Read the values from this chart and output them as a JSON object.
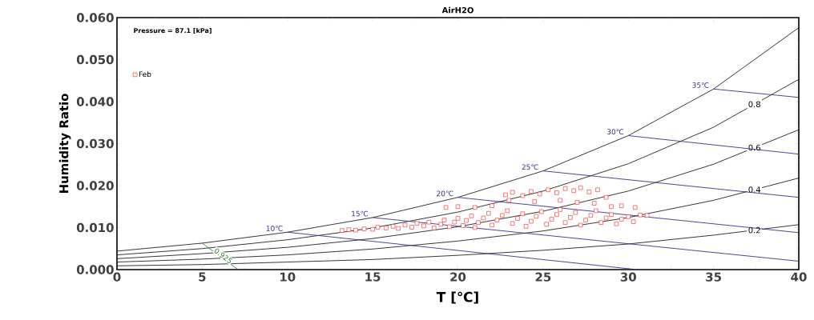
{
  "chart_data": {
    "type": "scatter",
    "title": "AirH2O",
    "xlabel": "T [℃]",
    "ylabel": "Humidity Ratio",
    "annotations": [
      "Pressure = 87.1 [kPa]"
    ],
    "xlim": [
      0,
      40
    ],
    "ylim": [
      0,
      0.06
    ],
    "xticks": [
      0,
      5,
      10,
      15,
      20,
      25,
      30,
      35,
      40
    ],
    "yticks": [
      {
        "value": 0,
        "label": "0.000"
      },
      {
        "value": 0.01,
        "label": "0.010"
      },
      {
        "value": 0.02,
        "label": "0.020"
      },
      {
        "value": 0.03,
        "label": "0.030"
      },
      {
        "value": 0.04,
        "label": "0.040"
      },
      {
        "value": 0.05,
        "label": "0.050"
      },
      {
        "value": 0.06,
        "label": "0.060"
      }
    ],
    "grid": false,
    "legend": "top left",
    "series": [
      {
        "name": "Feb",
        "marker": "square",
        "color": "#ee2222",
        "x": [
          13.2,
          13.6,
          14.0,
          14.5,
          15.0,
          15.3,
          15.8,
          16.2,
          16.5,
          16.9,
          17.3,
          17.6,
          18.0,
          18.3,
          18.6,
          19.0,
          19.2,
          19.5,
          19.8,
          20.0,
          20.3,
          20.5,
          20.8,
          21.0,
          21.2,
          21.5,
          21.8,
          22.0,
          22.3,
          22.6,
          22.9,
          23.2,
          23.5,
          23.8,
          24.0,
          24.3,
          24.6,
          24.9,
          25.2,
          25.5,
          25.8,
          26.0,
          26.3,
          26.6,
          26.9,
          27.2,
          27.5,
          27.8,
          28.1,
          28.4,
          28.7,
          29.0,
          29.3,
          29.6,
          30.0,
          30.3,
          30.7,
          31.1,
          19.3,
          20.0,
          21.0,
          22.0,
          22.8,
          23.2,
          23.8,
          24.3,
          24.8,
          25.3,
          25.8,
          26.3,
          26.8,
          27.2,
          27.7,
          28.2,
          28.7,
          27.0,
          28.0,
          29.0,
          29.6,
          30.4,
          23.0,
          24.5,
          26.0
        ],
        "values": [
          0.0093,
          0.0095,
          0.0094,
          0.0097,
          0.0096,
          0.0101,
          0.0099,
          0.0103,
          0.0098,
          0.0106,
          0.0101,
          0.011,
          0.0104,
          0.0113,
          0.0099,
          0.0108,
          0.0118,
          0.0102,
          0.0113,
          0.0122,
          0.0105,
          0.0117,
          0.0128,
          0.01,
          0.0112,
          0.0123,
          0.0134,
          0.0106,
          0.0118,
          0.0129,
          0.014,
          0.011,
          0.0122,
          0.0133,
          0.0103,
          0.0115,
          0.0127,
          0.0138,
          0.0108,
          0.012,
          0.0131,
          0.0143,
          0.0112,
          0.0124,
          0.0136,
          0.0106,
          0.0118,
          0.0129,
          0.014,
          0.0112,
          0.0123,
          0.0131,
          0.0109,
          0.012,
          0.0126,
          0.0114,
          0.013,
          0.0129,
          0.0148,
          0.015,
          0.0148,
          0.0152,
          0.0178,
          0.0184,
          0.0176,
          0.0186,
          0.018,
          0.019,
          0.0183,
          0.0193,
          0.0188,
          0.0195,
          0.0185,
          0.019,
          0.0172,
          0.016,
          0.0158,
          0.015,
          0.0152,
          0.0148,
          0.0165,
          0.0162,
          0.0165
        ]
      },
      {
        "type": "line",
        "color": "#222222",
        "x": [
          0,
          5,
          10,
          15,
          20,
          25,
          30,
          35,
          40
        ],
        "values": [
          0.0044,
          0.0063,
          0.0089,
          0.0124,
          0.0172,
          0.0235,
          0.0319,
          0.043,
          0.0576
        ]
      },
      {
        "name": "0.8",
        "type": "line",
        "color": "#222222",
        "x": [
          0,
          5,
          10,
          15,
          20,
          25,
          30,
          35,
          40
        ],
        "values": [
          0.0035,
          0.005,
          0.0071,
          0.0099,
          0.0137,
          0.0187,
          0.0252,
          0.0339,
          0.0453
        ]
      },
      {
        "name": "0.6",
        "type": "line",
        "color": "#222222",
        "x": [
          0,
          5,
          10,
          15,
          20,
          25,
          30,
          35,
          40
        ],
        "values": [
          0.0026,
          0.0038,
          0.0053,
          0.0074,
          0.0102,
          0.0139,
          0.0187,
          0.0251,
          0.0333
        ]
      },
      {
        "name": "0.4",
        "type": "line",
        "color": "#222222",
        "x": [
          0,
          5,
          10,
          15,
          20,
          25,
          30,
          35,
          40
        ],
        "values": [
          0.0018,
          0.0025,
          0.0035,
          0.0049,
          0.0068,
          0.0092,
          0.0124,
          0.0165,
          0.0218
        ]
      },
      {
        "name": "0.2",
        "type": "line",
        "color": "#222222",
        "x": [
          0,
          5,
          10,
          15,
          20,
          25,
          30,
          35,
          40
        ],
        "values": [
          0.0009,
          0.0012,
          0.0018,
          0.0024,
          0.0034,
          0.0046,
          0.0061,
          0.0082,
          0.0107
        ]
      },
      {
        "name": "10℃",
        "type": "line",
        "color": "#33338a",
        "x": [
          10,
          30.5
        ],
        "values": [
          0.0089,
          0.0
        ]
      },
      {
        "name": "15℃",
        "type": "line",
        "color": "#33338a",
        "x": [
          15,
          40
        ],
        "values": [
          0.0124,
          0.002
        ]
      },
      {
        "name": "20℃",
        "type": "line",
        "color": "#33338a",
        "x": [
          20,
          40
        ],
        "values": [
          0.0172,
          0.0088
        ]
      },
      {
        "name": "25℃",
        "type": "line",
        "color": "#33338a",
        "x": [
          25,
          40
        ],
        "values": [
          0.0235,
          0.0172
        ]
      },
      {
        "name": "30℃",
        "type": "line",
        "color": "#33338a",
        "x": [
          30,
          40
        ],
        "values": [
          0.0319,
          0.0275
        ]
      },
      {
        "name": "35℃",
        "type": "line",
        "color": "#33338a",
        "x": [
          35,
          40
        ],
        "values": [
          0.043,
          0.041
        ]
      },
      {
        "name": "0.925",
        "type": "line",
        "color": "#2e7d2e",
        "x": [
          5,
          7.1
        ],
        "values": [
          0.0063,
          0.0
        ]
      }
    ]
  }
}
